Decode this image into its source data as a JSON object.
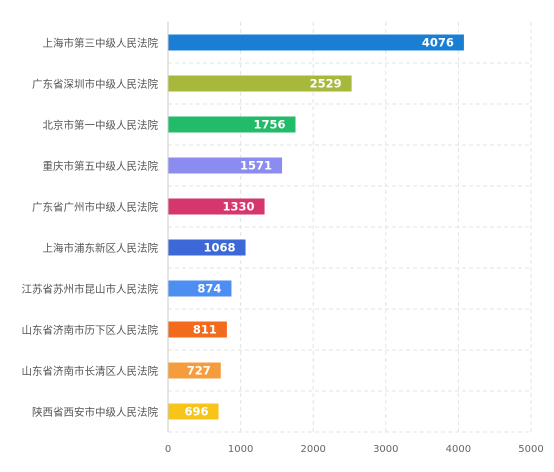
{
  "chart_data": {
    "type": "bar",
    "orientation": "horizontal",
    "categories": [
      "上海市第三中级人民法院",
      "广东省深圳市中级人民法院",
      "北京市第一中级人民法院",
      "重庆市第五中级人民法院",
      "广东省广州市中级人民法院",
      "上海市浦东新区人民法院",
      "江苏省苏州市昆山市人民法院",
      "山东省济南市历下区人民法院",
      "山东省济南市长清区人民法院",
      "陕西省西安市中级人民法院"
    ],
    "values": [
      4076,
      2529,
      1756,
      1571,
      1330,
      1068,
      874,
      811,
      727,
      696
    ],
    "colors": [
      "#1a7fd3",
      "#a8b83a",
      "#22bb6a",
      "#8b8cf0",
      "#d6366e",
      "#3c68d8",
      "#4c8ef2",
      "#f26a1c",
      "#f59d3e",
      "#f7c51a"
    ],
    "xlim": [
      0,
      5000
    ],
    "xticks": [
      0,
      1000,
      2000,
      3000,
      4000,
      5000
    ],
    "grid": true,
    "data_labels": true
  }
}
